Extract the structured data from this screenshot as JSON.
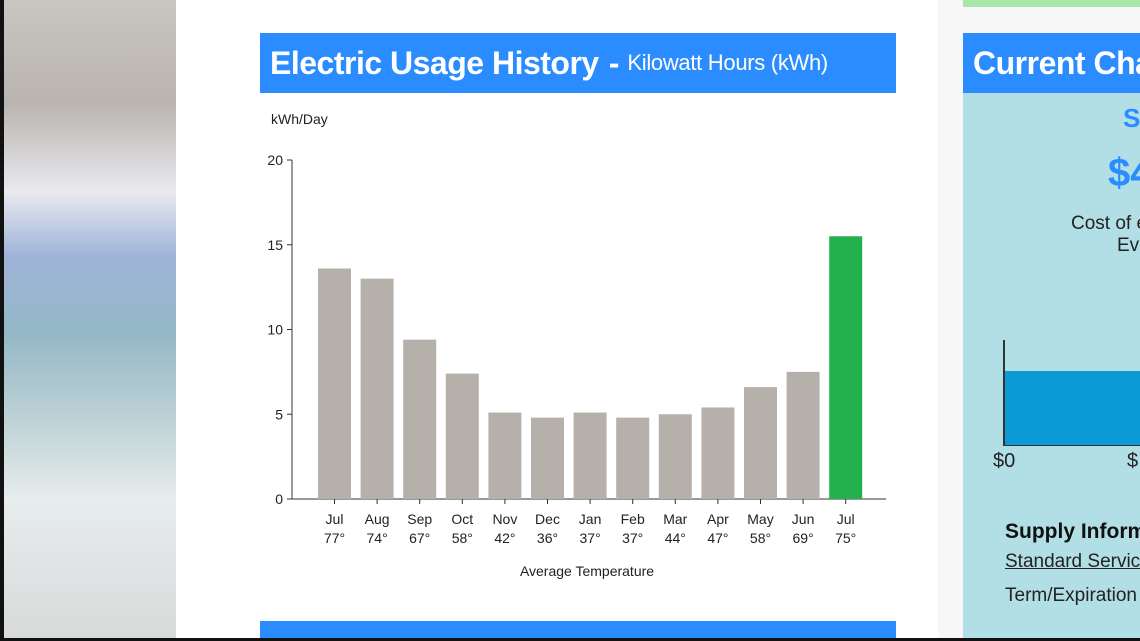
{
  "usage_header": {
    "title": "Electric Usage History",
    "separator": "-",
    "subtitle": "Kilowatt Hours (kWh)"
  },
  "chart_data": {
    "type": "bar",
    "ylabel": "kWh/Day",
    "xlabel": "Average Temperature",
    "ylim": [
      0,
      20
    ],
    "yticks": [
      0,
      5,
      10,
      15,
      20
    ],
    "categories": [
      "Jul",
      "Aug",
      "Sep",
      "Oct",
      "Nov",
      "Dec",
      "Jan",
      "Feb",
      "Mar",
      "Apr",
      "May",
      "Jun",
      "Jul"
    ],
    "temperatures": [
      "77°",
      "74°",
      "67°",
      "58°",
      "42°",
      "36°",
      "37°",
      "37°",
      "44°",
      "47°",
      "58°",
      "69°",
      "75°"
    ],
    "values": [
      13.6,
      13.0,
      9.4,
      7.4,
      5.1,
      4.8,
      5.1,
      4.8,
      5.0,
      5.4,
      6.6,
      7.5,
      15.5
    ],
    "colors": {
      "past": "#b6b0aa",
      "current": "#22b14c"
    },
    "highlight_index": 12
  },
  "right_panel": {
    "title": "Current Cha",
    "s_text": "S",
    "amount": "$4",
    "cost_text": "Cost of e",
    "ev_text": "Ev",
    "axis_start": "$0",
    "axis_next": "$",
    "supply_heading": "Supply Inform",
    "standard_service": "Standard Servic",
    "term_text": "Term/Expiration"
  }
}
